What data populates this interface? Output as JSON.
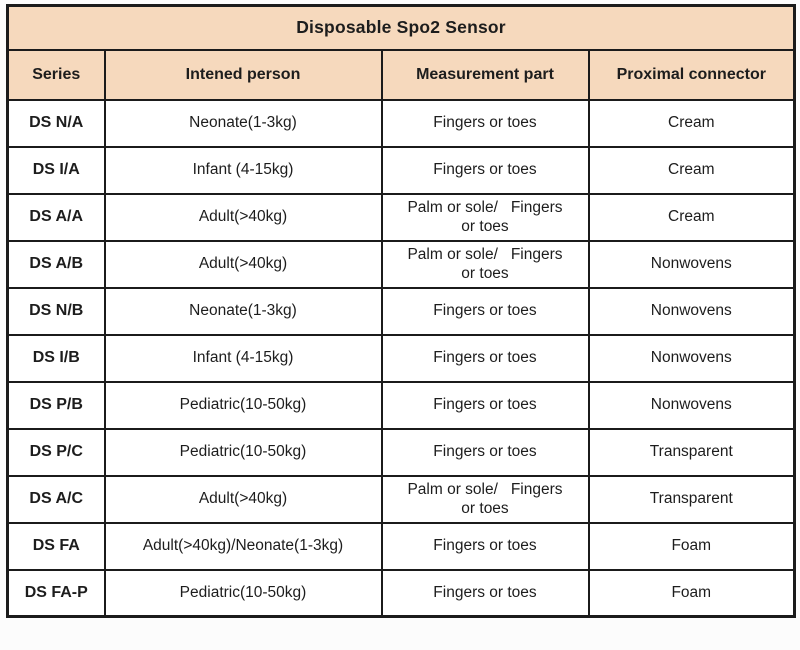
{
  "table": {
    "title": "Disposable Spo2 Sensor",
    "columns": [
      "Series",
      "Intened person",
      "Measurement part",
      "Proximal connector"
    ],
    "rows": [
      {
        "series": "DS N/A",
        "person": "Neonate(1-3kg)",
        "part": "Fingers or toes",
        "connector": "Cream"
      },
      {
        "series": "DS I/A",
        "person": "Infant (4-15kg)",
        "part": "Fingers or toes",
        "connector": "Cream"
      },
      {
        "series": "DS A/A",
        "person": "Adult(>40kg)",
        "part": "Palm or sole/   Fingers\nor toes",
        "connector": "Cream"
      },
      {
        "series": "DS A/B",
        "person": "Adult(>40kg)",
        "part": "Palm or sole/   Fingers\nor toes",
        "connector": "Nonwovens"
      },
      {
        "series": "DS N/B",
        "person": "Neonate(1-3kg)",
        "part": "Fingers or toes",
        "connector": "Nonwovens"
      },
      {
        "series": "DS I/B",
        "person": "Infant (4-15kg)",
        "part": "Fingers or toes",
        "connector": "Nonwovens"
      },
      {
        "series": "DS P/B",
        "person": "Pediatric(10-50kg)",
        "part": "Fingers or toes",
        "connector": "Nonwovens"
      },
      {
        "series": "DS P/C",
        "person": "Pediatric(10-50kg)",
        "part": "Fingers or toes",
        "connector": "Transparent"
      },
      {
        "series": "DS A/C",
        "person": "Adult(>40kg)",
        "part": "Palm or sole/   Fingers\nor toes",
        "connector": "Transparent"
      },
      {
        "series": "DS FA",
        "person": "Adult(>40kg)/Neonate(1-3kg)",
        "part": "Fingers or toes",
        "connector": "Foam"
      },
      {
        "series": "DS FA-P",
        "person": "Pediatric(10-50kg)",
        "part": "Fingers or toes",
        "connector": "Foam"
      }
    ],
    "colors": {
      "header_bg": "#f6d9bd",
      "border": "#1b1b1b",
      "text": "#1d1d1d",
      "page_bg": "#fcfcfc",
      "cell_bg": "#ffffff"
    }
  }
}
